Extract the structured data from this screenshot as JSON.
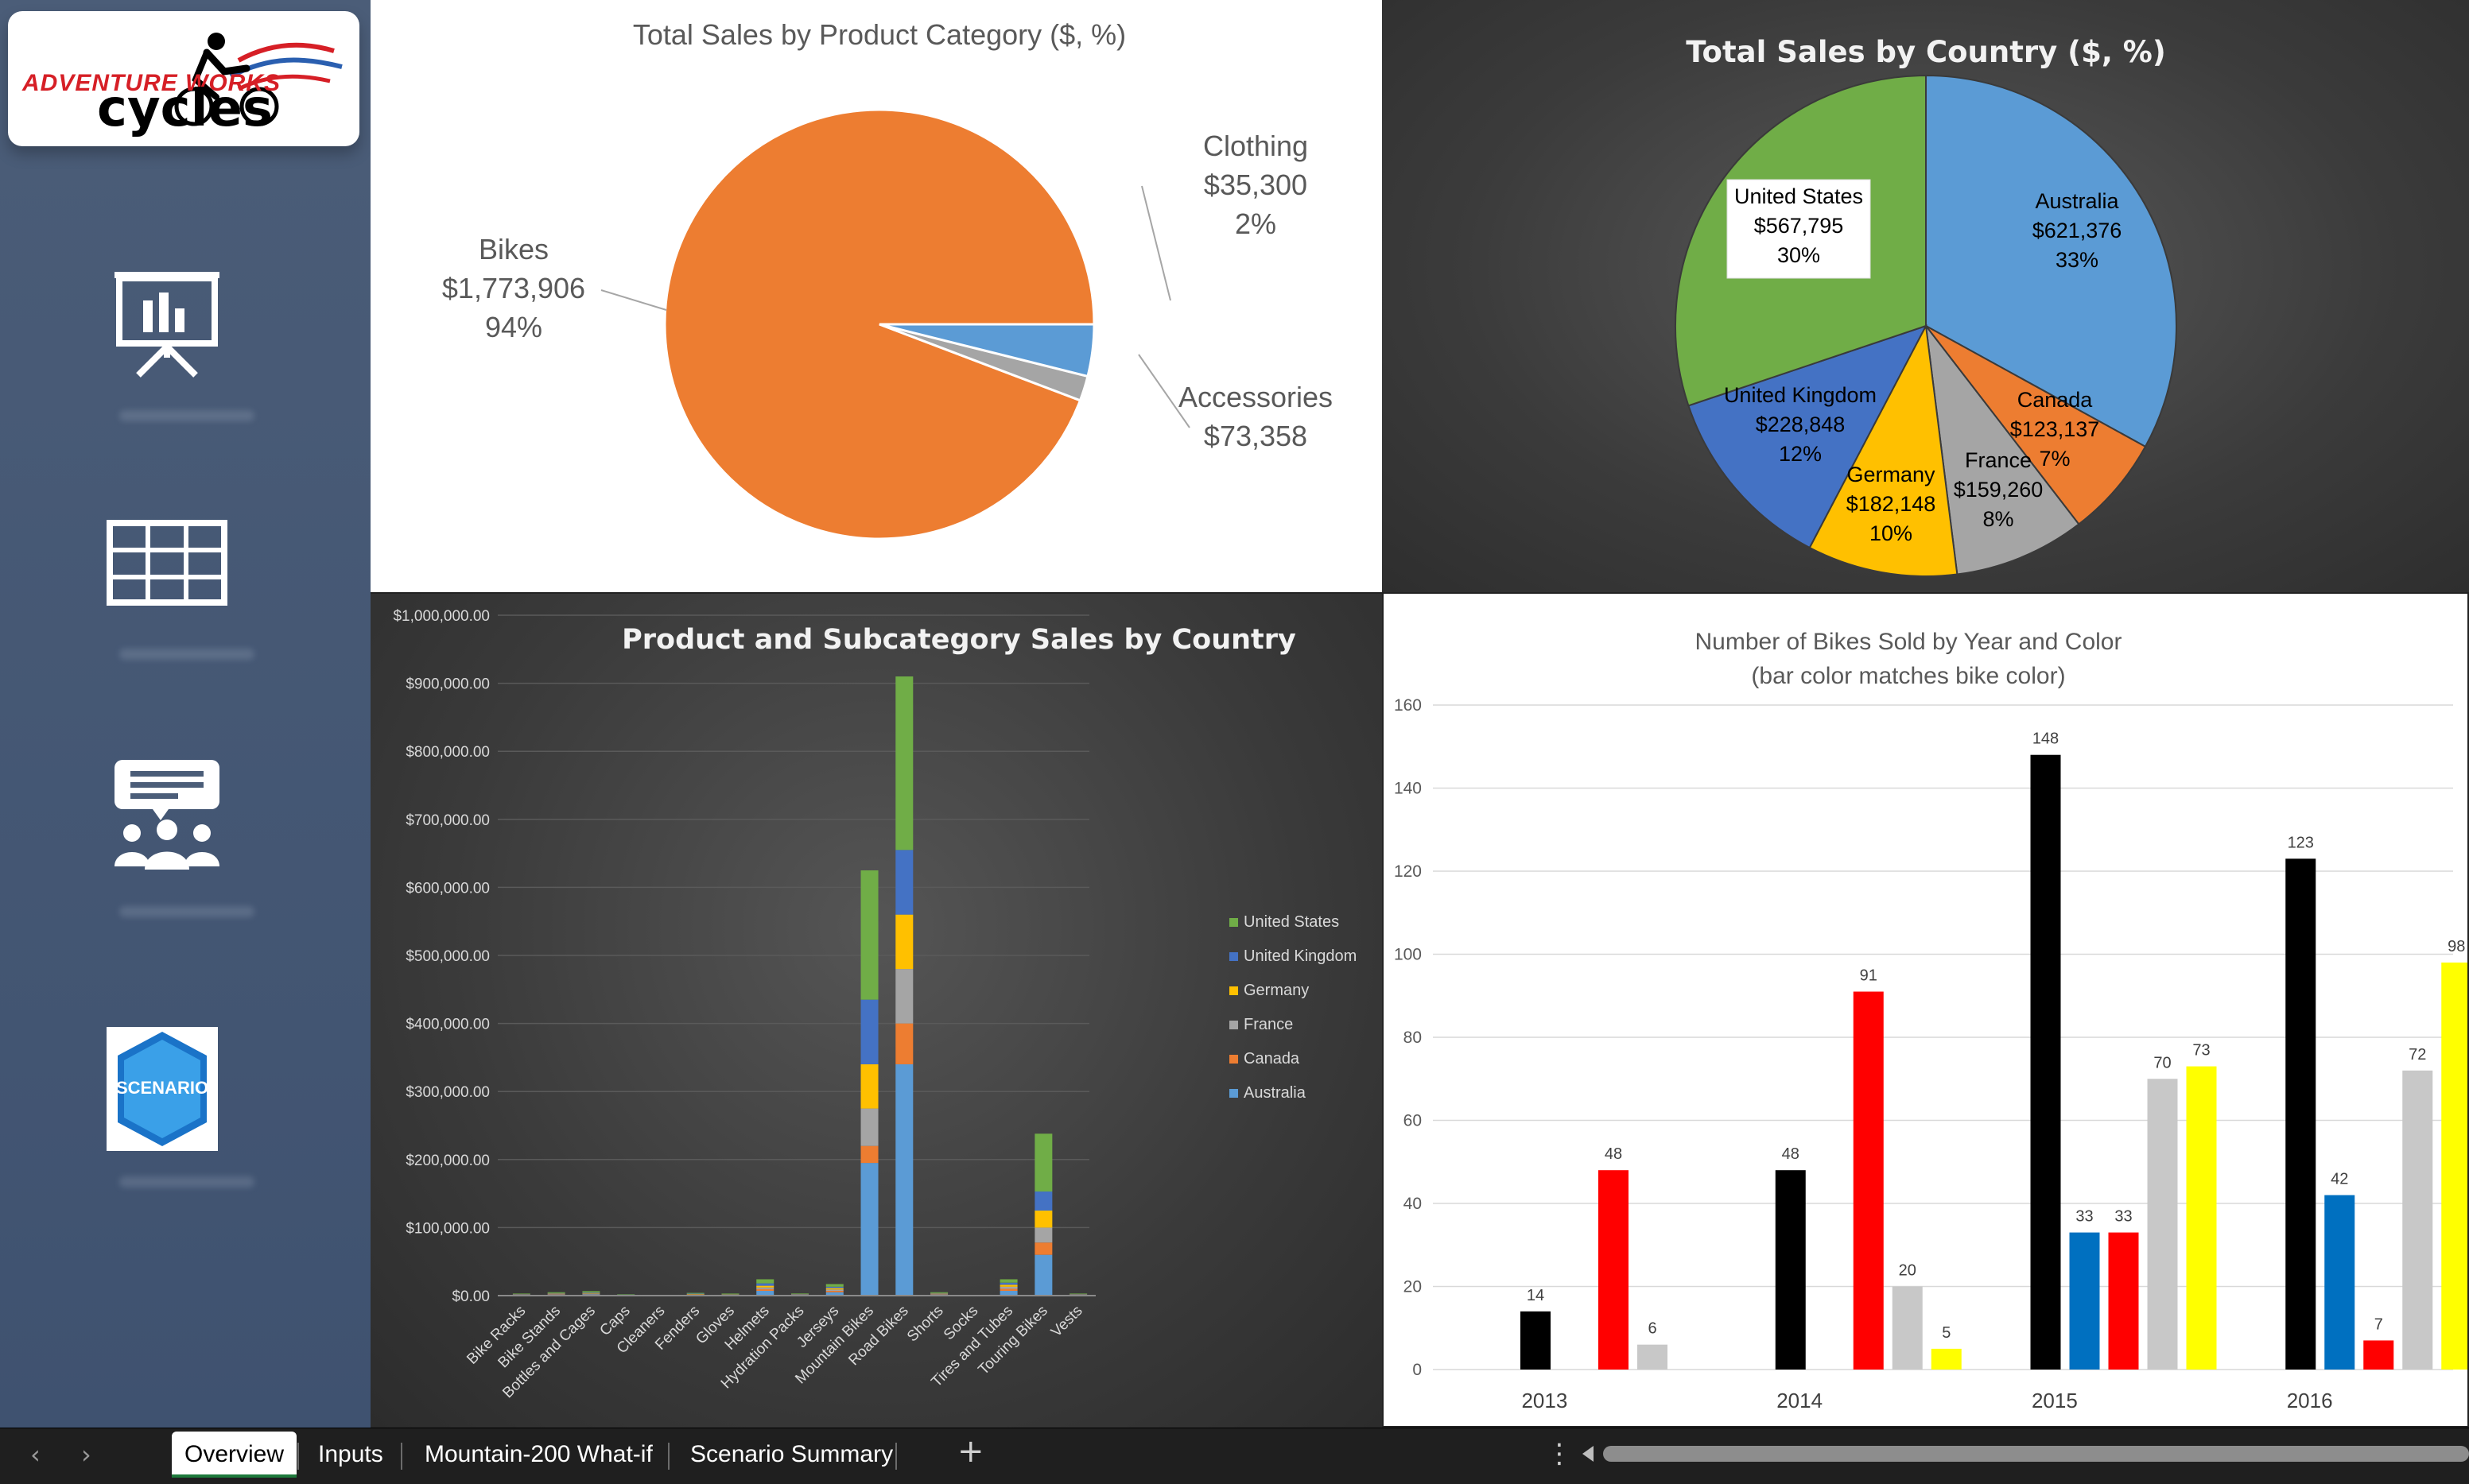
{
  "app": {
    "logo": {
      "line1": "ADVENTURE WORKS",
      "line2": "cycles"
    },
    "sidebar_icons": [
      "presentation-icon",
      "table-grid-icon",
      "meeting-icon",
      "scenario-icon"
    ],
    "scenario_label": "SCENARIO"
  },
  "sheets": {
    "tabs": [
      {
        "label": "Overview",
        "active": true
      },
      {
        "label": "Inputs",
        "active": false
      },
      {
        "label": "Mountain-200 What-if",
        "active": false
      },
      {
        "label": "Scenario Summary",
        "active": false
      }
    ],
    "add_label": "+",
    "more_label": "⋮",
    "prev_label": "‹",
    "next_label": "›"
  },
  "chart_data": [
    {
      "id": "category",
      "type": "pie",
      "title": "Total Sales by Product Category ($, %)",
      "slices": [
        {
          "name": "Bikes",
          "value_label": "$1,773,906",
          "pct_label": "94%",
          "value": 1773906,
          "color": "#ed7d31"
        },
        {
          "name": "Clothing",
          "value_label": "$35,300",
          "pct_label": "2%",
          "value": 35300,
          "color": "#a5a5a5"
        },
        {
          "name": "Accessories",
          "value_label": "$73,358",
          "pct_label": "",
          "value": 73358,
          "color": "#5b9bd5"
        }
      ]
    },
    {
      "id": "country",
      "type": "pie",
      "title": "Total Sales by Country ($, %)",
      "slices": [
        {
          "name": "Australia",
          "value_label": "$621,376",
          "pct_label": "33%",
          "value": 621376,
          "color": "#5b9bd5"
        },
        {
          "name": "Canada",
          "value_label": "$123,137",
          "pct_label": "7%",
          "value": 123137,
          "color": "#ed7d31"
        },
        {
          "name": "France",
          "value_label": "$159,260",
          "pct_label": "8%",
          "value": 159260,
          "color": "#a5a5a5"
        },
        {
          "name": "Germany",
          "value_label": "$182,148",
          "pct_label": "10%",
          "value": 182148,
          "color": "#ffc000"
        },
        {
          "name": "United Kingdom",
          "value_label": "$228,848",
          "pct_label": "12%",
          "value": 228848,
          "color": "#4472c4"
        },
        {
          "name": "United States",
          "value_label": "$567,795",
          "pct_label": "30%",
          "value": 567795,
          "color": "#70ad47"
        }
      ]
    },
    {
      "id": "subcategory",
      "type": "bar",
      "stacked": true,
      "title": "Product and Subcategory Sales by Country",
      "ylim": [
        0,
        1000000
      ],
      "yticks": [
        "$0.00",
        "$100,000.00",
        "$200,000.00",
        "$300,000.00",
        "$400,000.00",
        "$500,000.00",
        "$600,000.00",
        "$700,000.00",
        "$800,000.00",
        "$900,000.00",
        "$1,000,000.00"
      ],
      "legend_position": "right",
      "categories": [
        "Bike Racks",
        "Bike Stands",
        "Bottles and Cages",
        "Caps",
        "Cleaners",
        "Fenders",
        "Gloves",
        "Helmets",
        "Hydration Packs",
        "Jerseys",
        "Mountain Bikes",
        "Road Bikes",
        "Shorts",
        "Socks",
        "Tires and Tubes",
        "Touring Bikes",
        "Vests"
      ],
      "series": [
        {
          "name": "Australia",
          "color": "#5b9bd5",
          "values": [
            1000,
            1500,
            2000,
            500,
            300,
            1200,
            800,
            7000,
            1000,
            5000,
            195000,
            340000,
            1500,
            300,
            7000,
            60000,
            1000
          ]
        },
        {
          "name": "Canada",
          "color": "#ed7d31",
          "values": [
            300,
            500,
            600,
            200,
            100,
            400,
            300,
            2500,
            300,
            2000,
            25000,
            60000,
            500,
            100,
            3000,
            18000,
            300
          ]
        },
        {
          "name": "France",
          "color": "#a5a5a5",
          "values": [
            300,
            500,
            600,
            200,
            100,
            400,
            300,
            2500,
            300,
            2000,
            55000,
            80000,
            500,
            100,
            3000,
            22000,
            300
          ]
        },
        {
          "name": "Germany",
          "color": "#ffc000",
          "values": [
            300,
            500,
            700,
            200,
            100,
            400,
            300,
            2500,
            300,
            2000,
            65000,
            80000,
            500,
            100,
            3000,
            25000,
            300
          ]
        },
        {
          "name": "United Kingdom",
          "color": "#4472c4",
          "values": [
            400,
            700,
            900,
            300,
            100,
            500,
            400,
            3500,
            400,
            2000,
            95000,
            95000,
            700,
            100,
            3000,
            28000,
            400
          ]
        },
        {
          "name": "United States",
          "color": "#70ad47",
          "values": [
            700,
            1300,
            1800,
            600,
            300,
            1100,
            900,
            6000,
            800,
            4000,
            190000,
            255000,
            1300,
            300,
            5000,
            85000,
            700
          ]
        }
      ]
    },
    {
      "id": "bikes",
      "type": "bar",
      "title": "Number of Bikes Sold by Year and Color",
      "subtitle": "(bar color matches bike color)",
      "ylim": [
        0,
        160
      ],
      "yticks": [
        0,
        20,
        40,
        60,
        80,
        100,
        120,
        140,
        160
      ],
      "categories": [
        "2013",
        "2014",
        "2015",
        "2016"
      ],
      "colors": [
        "#000000",
        "#0070c0",
        "#ff0000",
        "#c8c8c8",
        "#ffff00"
      ],
      "groups": [
        [
          14,
          null,
          48,
          6,
          null
        ],
        [
          48,
          null,
          91,
          20,
          5
        ],
        [
          148,
          33,
          33,
          70,
          73
        ],
        [
          123,
          42,
          7,
          72,
          98
        ]
      ]
    }
  ]
}
